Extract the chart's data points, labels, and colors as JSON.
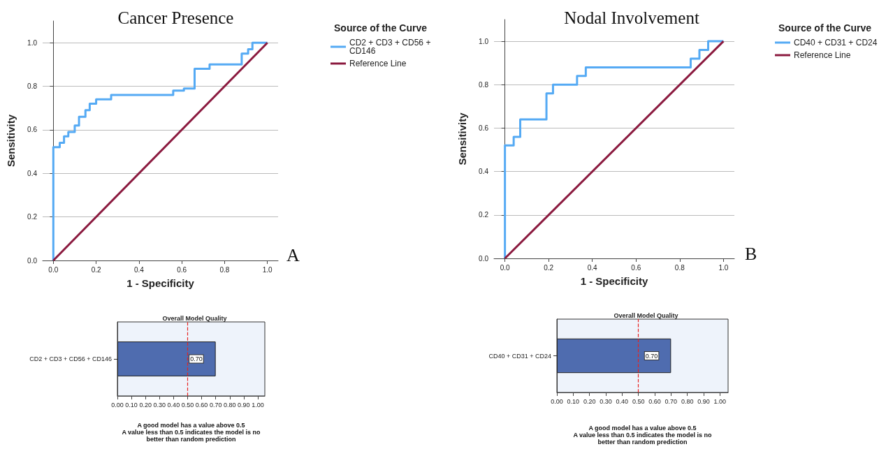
{
  "chart_data": [
    {
      "type": "step",
      "title": "Cancer Presence",
      "xlabel": "1 - Specificity",
      "ylabel": "Sensitivity",
      "legend_title": "Source of the Curve",
      "legend": "top right",
      "grid": "y",
      "marker": "none",
      "xlim": [
        -0.05,
        1.05
      ],
      "ylim": [
        0,
        1.1
      ],
      "xticks": [
        {
          "value": 0,
          "label": "0.0"
        },
        {
          "value": 0.2,
          "label": "0.2"
        },
        {
          "value": 0.4,
          "label": "0.4"
        },
        {
          "value": 0.6,
          "label": "0.6"
        },
        {
          "value": 0.8,
          "label": "0.8"
        },
        {
          "value": 1,
          "label": "1.0"
        }
      ],
      "yticks": [
        {
          "value": 0,
          "label": "0.0"
        },
        {
          "value": 0.2,
          "label": "0.2"
        },
        {
          "value": 0.4,
          "label": "0.4"
        },
        {
          "value": 0.6,
          "label": "0.6"
        },
        {
          "value": 0.8,
          "label": "0.8"
        },
        {
          "value": 1,
          "label": "1.0"
        }
      ],
      "series": [
        {
          "name": "CD2 + CD3 + CD56 + CD146",
          "color": "#55aaf4",
          "type": "step",
          "x": [
            0,
            0,
            0.03,
            0.05,
            0.07,
            0.1,
            0.12,
            0.15,
            0.17,
            0.2,
            0.27,
            0.56,
            0.61,
            0.66,
            0.73,
            0.88,
            0.91,
            0.93,
            1.0
          ],
          "values": [
            0,
            0.52,
            0.54,
            0.57,
            0.59,
            0.62,
            0.66,
            0.69,
            0.72,
            0.74,
            0.76,
            0.78,
            0.79,
            0.88,
            0.9,
            0.95,
            0.97,
            1.0,
            1.0
          ]
        },
        {
          "name": "Reference Line",
          "color": "#8b1a3f",
          "type": "line",
          "x": [
            0,
            1
          ],
          "values": [
            0,
            1
          ]
        }
      ],
      "annotations": [
        "A"
      ]
    },
    {
      "type": "step",
      "title": "Nodal Involvement",
      "xlabel": "1 - Specificity",
      "ylabel": "Sensitivity",
      "legend_title": "Source of the Curve",
      "legend": "top right",
      "grid": "y",
      "marker": "none",
      "xlim": [
        -0.05,
        1.05
      ],
      "ylim": [
        0,
        1.1
      ],
      "xticks": [
        {
          "value": 0,
          "label": "0.0"
        },
        {
          "value": 0.2,
          "label": "0.2"
        },
        {
          "value": 0.4,
          "label": "0.4"
        },
        {
          "value": 0.6,
          "label": "0.6"
        },
        {
          "value": 0.8,
          "label": "0.8"
        },
        {
          "value": 1,
          "label": "1.0"
        }
      ],
      "yticks": [
        {
          "value": 0,
          "label": "0.0"
        },
        {
          "value": 0.2,
          "label": "0.2"
        },
        {
          "value": 0.4,
          "label": "0.4"
        },
        {
          "value": 0.6,
          "label": "0.6"
        },
        {
          "value": 0.8,
          "label": "0.8"
        },
        {
          "value": 1,
          "label": "1.0"
        }
      ],
      "series": [
        {
          "name": "CD40 + CD31 + CD24",
          "color": "#55aaf4",
          "type": "step",
          "x": [
            0,
            0,
            0.04,
            0.07,
            0.19,
            0.22,
            0.33,
            0.37,
            0.85,
            0.89,
            0.93,
            1.0
          ],
          "values": [
            0,
            0.52,
            0.56,
            0.64,
            0.76,
            0.8,
            0.84,
            0.88,
            0.92,
            0.96,
            1.0,
            1.0
          ]
        },
        {
          "name": "Reference Line",
          "color": "#8b1a3f",
          "type": "line",
          "x": [
            0,
            1
          ],
          "values": [
            0,
            1
          ]
        }
      ],
      "annotations": [
        "B"
      ]
    },
    {
      "type": "bar",
      "orientation": "horizontal",
      "title": "Overall Model Quality",
      "categories": [
        "CD2 + CD3 + CD56 + CD146"
      ],
      "values": [
        0.7
      ],
      "value_labels": [
        "0.70"
      ],
      "color": "#4f6caf",
      "xlim": [
        0,
        1.05
      ],
      "xticks": [
        {
          "value": 0,
          "label": "0.00"
        },
        {
          "value": 0.1,
          "label": "0.10"
        },
        {
          "value": 0.2,
          "label": "0.20"
        },
        {
          "value": 0.3,
          "label": "0.30"
        },
        {
          "value": 0.4,
          "label": "0.40"
        },
        {
          "value": 0.5,
          "label": "0.50"
        },
        {
          "value": 0.6,
          "label": "0.60"
        },
        {
          "value": 0.7,
          "label": "0.70"
        },
        {
          "value": 0.8,
          "label": "0.80"
        },
        {
          "value": 0.9,
          "label": "0.90"
        },
        {
          "value": 1,
          "label": "1.00"
        }
      ],
      "ref_lines": [
        {
          "axis": "x",
          "value": 0.5,
          "color": "#e8221f",
          "line_style": "dashed"
        }
      ],
      "annotations": [
        "A good model has a value above 0.5\nA value less than 0.5 indicates the model is no\nbetter than random prediction"
      ]
    },
    {
      "type": "bar",
      "orientation": "horizontal",
      "title": "Overall Model Quality",
      "categories": [
        "CD40 + CD31 + CD24"
      ],
      "values": [
        0.7
      ],
      "value_labels": [
        "0.70"
      ],
      "color": "#4f6caf",
      "xlim": [
        0,
        1.05
      ],
      "xticks": [
        {
          "value": 0,
          "label": "0.00"
        },
        {
          "value": 0.1,
          "label": "0.10"
        },
        {
          "value": 0.2,
          "label": "0.20"
        },
        {
          "value": 0.3,
          "label": "0.30"
        },
        {
          "value": 0.4,
          "label": "0.40"
        },
        {
          "value": 0.5,
          "label": "0.50"
        },
        {
          "value": 0.6,
          "label": "0.60"
        },
        {
          "value": 0.7,
          "label": "0.70"
        },
        {
          "value": 0.8,
          "label": "0.80"
        },
        {
          "value": 0.9,
          "label": "0.90"
        },
        {
          "value": 1,
          "label": "1.00"
        }
      ],
      "ref_lines": [
        {
          "axis": "x",
          "value": 0.5,
          "color": "#e8221f",
          "line_style": "dashed"
        }
      ],
      "annotations": [
        "A good model has a value above 0.5\nA value less than 0.5 indicates the model is no\nbetter than random prediction"
      ]
    }
  ]
}
